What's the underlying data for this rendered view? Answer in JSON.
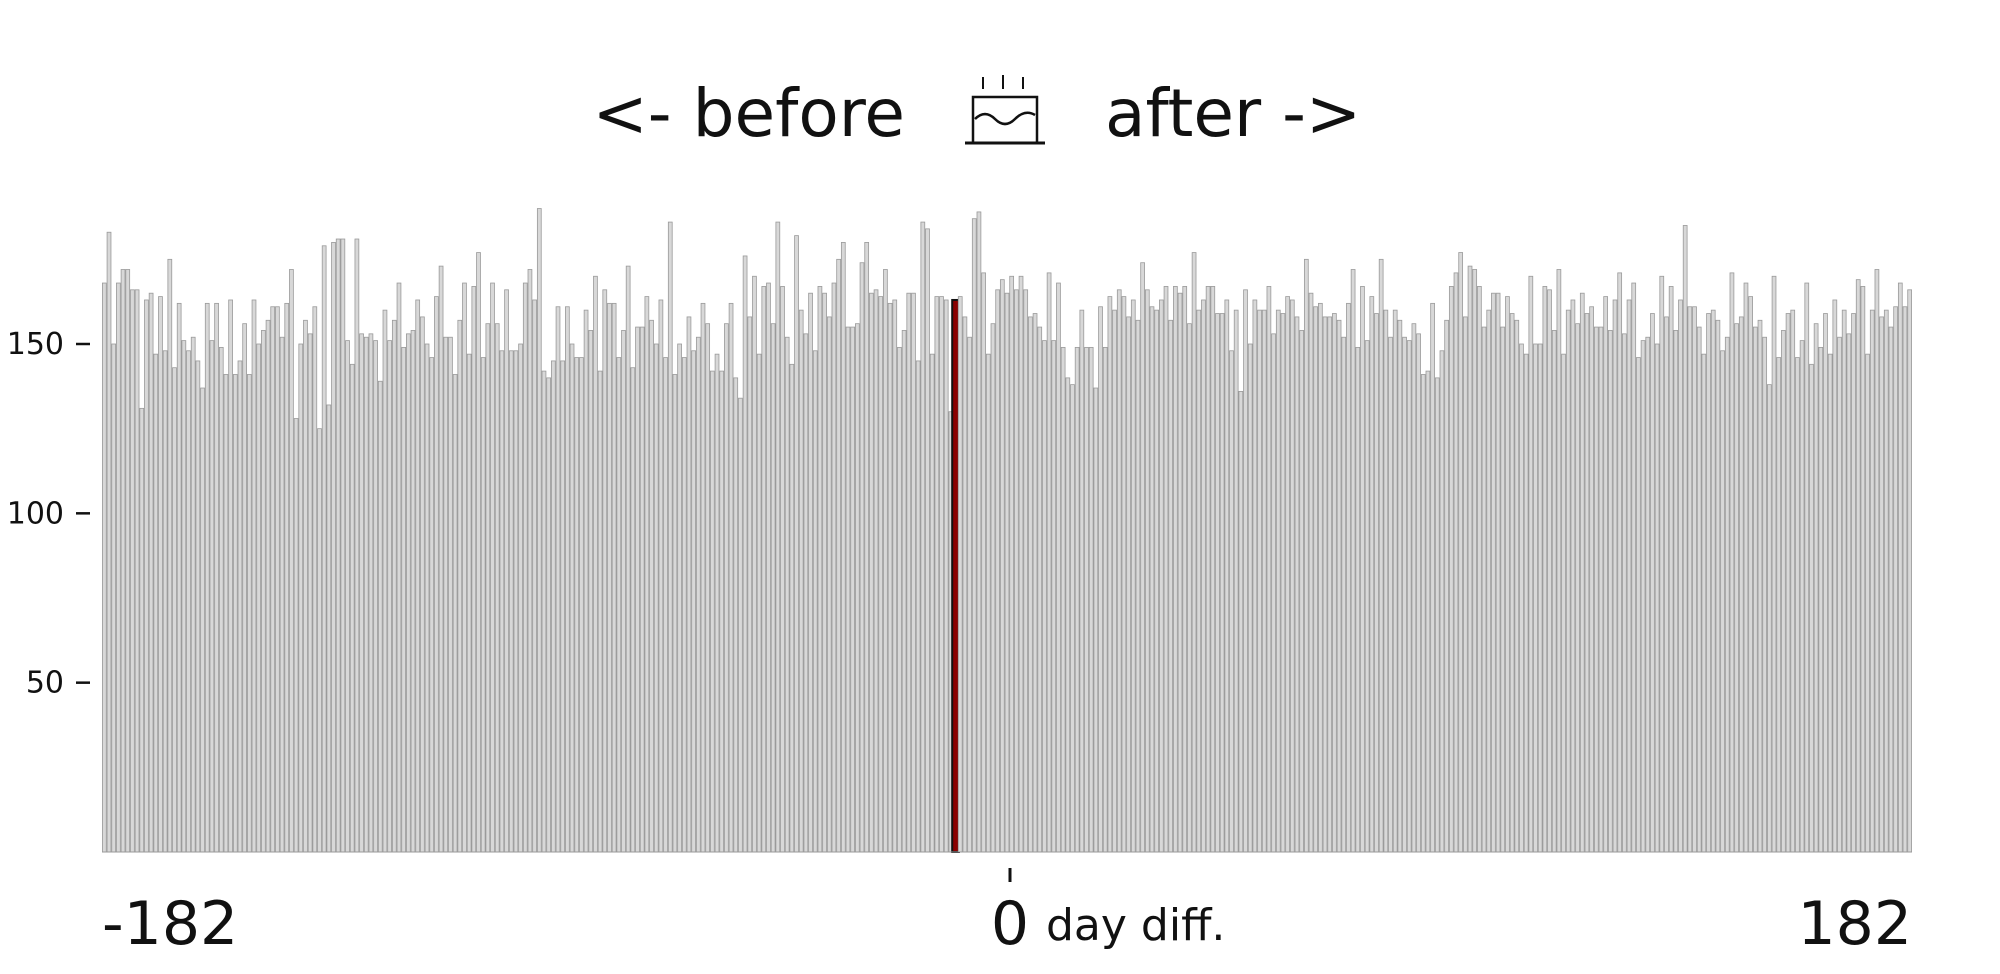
{
  "title_left": "<- before",
  "title_right": "after ->",
  "title_icon": "birthday-cake-icon",
  "colors": {
    "bar_fill": "#d8d8d8",
    "bar_stroke": "#9a9a9a",
    "highlight_fill": "#8b0000",
    "highlight_stroke": "#111111",
    "text": "#111111"
  },
  "chart_data": {
    "type": "bar",
    "title": "<- before after ->",
    "xlabel": "day diff.",
    "ylabel": "",
    "xlim": [
      -182,
      182
    ],
    "ylim": [
      0,
      195
    ],
    "x_tick_labels": [
      "-182",
      "0",
      "182"
    ],
    "y_ticks": [
      50,
      100,
      150
    ],
    "grid": false,
    "highlight_x": 0,
    "x_start": -182,
    "values": [
      168,
      183,
      150,
      168,
      172,
      172,
      166,
      166,
      131,
      163,
      165,
      147,
      164,
      148,
      175,
      143,
      162,
      151,
      148,
      152,
      145,
      137,
      162,
      151,
      162,
      149,
      141,
      163,
      141,
      145,
      156,
      141,
      163,
      150,
      154,
      157,
      161,
      161,
      152,
      162,
      172,
      128,
      150,
      157,
      153,
      161,
      125,
      179,
      132,
      180,
      181,
      181,
      151,
      144,
      181,
      153,
      152,
      153,
      151,
      139,
      160,
      151,
      157,
      168,
      149,
      153,
      154,
      163,
      158,
      150,
      146,
      164,
      173,
      152,
      152,
      141,
      157,
      168,
      147,
      167,
      177,
      146,
      156,
      168,
      156,
      148,
      166,
      148,
      148,
      150,
      168,
      172,
      163,
      190,
      142,
      140,
      145,
      161,
      145,
      161,
      150,
      146,
      146,
      160,
      154,
      170,
      142,
      166,
      162,
      162,
      146,
      154,
      173,
      143,
      155,
      155,
      164,
      157,
      150,
      163,
      146,
      186,
      141,
      150,
      146,
      158,
      148,
      152,
      162,
      156,
      142,
      147,
      142,
      156,
      162,
      140,
      134,
      176,
      158,
      170,
      147,
      167,
      168,
      156,
      186,
      167,
      152,
      144,
      182,
      160,
      153,
      165,
      148,
      167,
      165,
      158,
      168,
      175,
      180,
      155,
      155,
      156,
      174,
      180,
      165,
      166,
      164,
      172,
      162,
      163,
      149,
      154,
      165,
      165,
      145,
      186,
      184,
      147,
      164,
      164,
      163,
      130,
      163,
      164,
      158,
      152,
      187,
      189,
      171,
      147,
      156,
      166,
      169,
      165,
      170,
      166,
      170,
      166,
      158,
      159,
      155,
      151,
      171,
      151,
      168,
      149,
      140,
      138,
      149,
      160,
      149,
      149,
      137,
      161,
      149,
      164,
      160,
      166,
      164,
      158,
      163,
      157,
      174,
      166,
      161,
      160,
      163,
      167,
      157,
      167,
      165,
      167,
      156,
      177,
      160,
      163,
      167,
      167,
      159,
      159,
      163,
      148,
      160,
      136,
      166,
      150,
      163,
      160,
      160,
      167,
      153,
      160,
      159,
      164,
      163,
      158,
      154,
      175,
      165,
      161,
      162,
      158,
      158,
      159,
      157,
      152,
      162,
      172,
      149,
      167,
      151,
      164,
      159,
      175,
      160,
      152,
      160,
      157,
      152,
      151,
      156,
      153,
      141,
      142,
      162,
      140,
      148,
      157,
      167,
      171,
      177,
      158,
      173,
      172,
      167,
      155,
      160,
      165,
      165,
      155,
      164,
      159,
      157,
      150,
      147,
      170,
      150,
      150,
      167,
      166,
      154,
      172,
      147,
      160,
      163,
      156,
      165,
      159,
      161,
      155,
      155,
      164,
      154,
      163,
      171,
      153,
      163,
      168,
      146,
      151,
      152,
      159,
      150,
      170,
      158,
      167,
      154,
      163,
      185,
      161,
      161,
      155,
      147,
      159,
      160,
      157,
      148,
      152,
      171,
      156,
      158,
      168,
      164,
      155,
      157,
      152,
      138,
      170,
      146,
      154,
      159,
      160,
      146,
      151,
      168,
      144,
      156,
      149,
      159,
      147,
      163,
      152,
      160,
      153,
      159,
      169,
      167,
      147,
      160,
      172,
      158,
      160,
      155,
      161,
      168,
      161,
      166
    ]
  }
}
